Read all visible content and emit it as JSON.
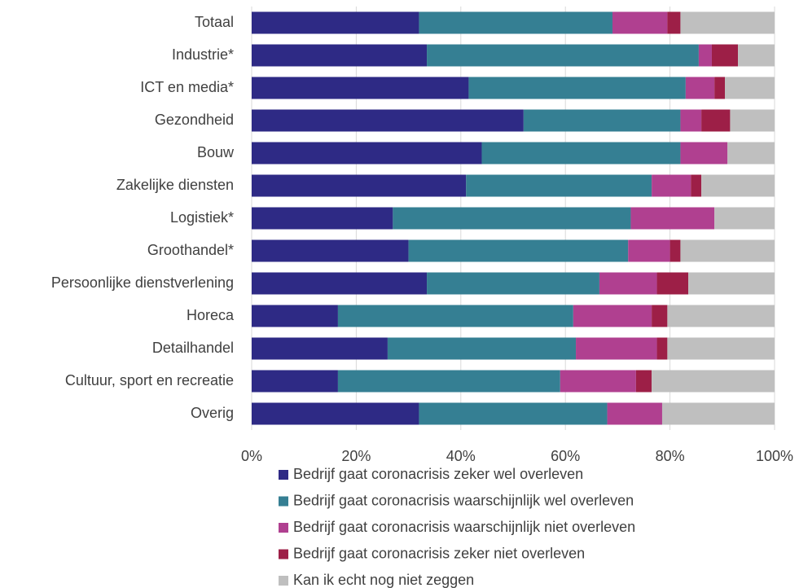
{
  "chart_data": {
    "type": "bar",
    "orientation": "horizontal",
    "stacked": true,
    "percent_stacked": true,
    "categories": [
      "Totaal",
      "Industrie*",
      "ICT en media*",
      "Gezondheid",
      "Bouw",
      "Zakelijke diensten",
      "Logistiek*",
      "Groothandel*",
      "Persoonlijke dienstverlening",
      "Horeca",
      "Detailhandel",
      "Cultuur, sport en recreatie",
      "Overig"
    ],
    "series": [
      {
        "name": "Bedrijf gaat coronacrisis zeker wel overleven",
        "color": "#2e2a85",
        "values": [
          32,
          33.5,
          41.5,
          52,
          44,
          41,
          27,
          30,
          33.5,
          16.5,
          26,
          16.5,
          32
        ]
      },
      {
        "name": "Bedrijf gaat coronacrisis waarschijnlijk wel overleven",
        "color": "#357f93",
        "values": [
          37,
          52,
          41.5,
          30,
          38,
          35.5,
          45.5,
          42,
          33,
          45,
          36,
          42.5,
          36
        ]
      },
      {
        "name": "Bedrijf gaat coronacrisis waarschijnlijk niet overleven",
        "color": "#b04090",
        "values": [
          10.5,
          2.5,
          5.5,
          4,
          9,
          7.5,
          16,
          8,
          11,
          15,
          15.5,
          14.5,
          10.5
        ]
      },
      {
        "name": "Bedrijf gaat coronacrisis zeker niet overleven",
        "color": "#9d1f47",
        "values": [
          2.5,
          5,
          2,
          5.5,
          0,
          2,
          0,
          2,
          6,
          3,
          2,
          3,
          0
        ]
      },
      {
        "name": "Kan ik echt nog niet zeggen",
        "color": "#bfbfbf",
        "values": [
          18,
          7,
          9.5,
          8.5,
          9,
          14,
          11.5,
          18,
          16.5,
          20.5,
          20.5,
          23.5,
          21.5
        ]
      }
    ],
    "xlim": [
      0,
      100
    ],
    "x_ticks": [
      "0%",
      "20%",
      "40%",
      "60%",
      "80%",
      "100%"
    ],
    "grid": "vertical",
    "legend_position": "bottom"
  }
}
